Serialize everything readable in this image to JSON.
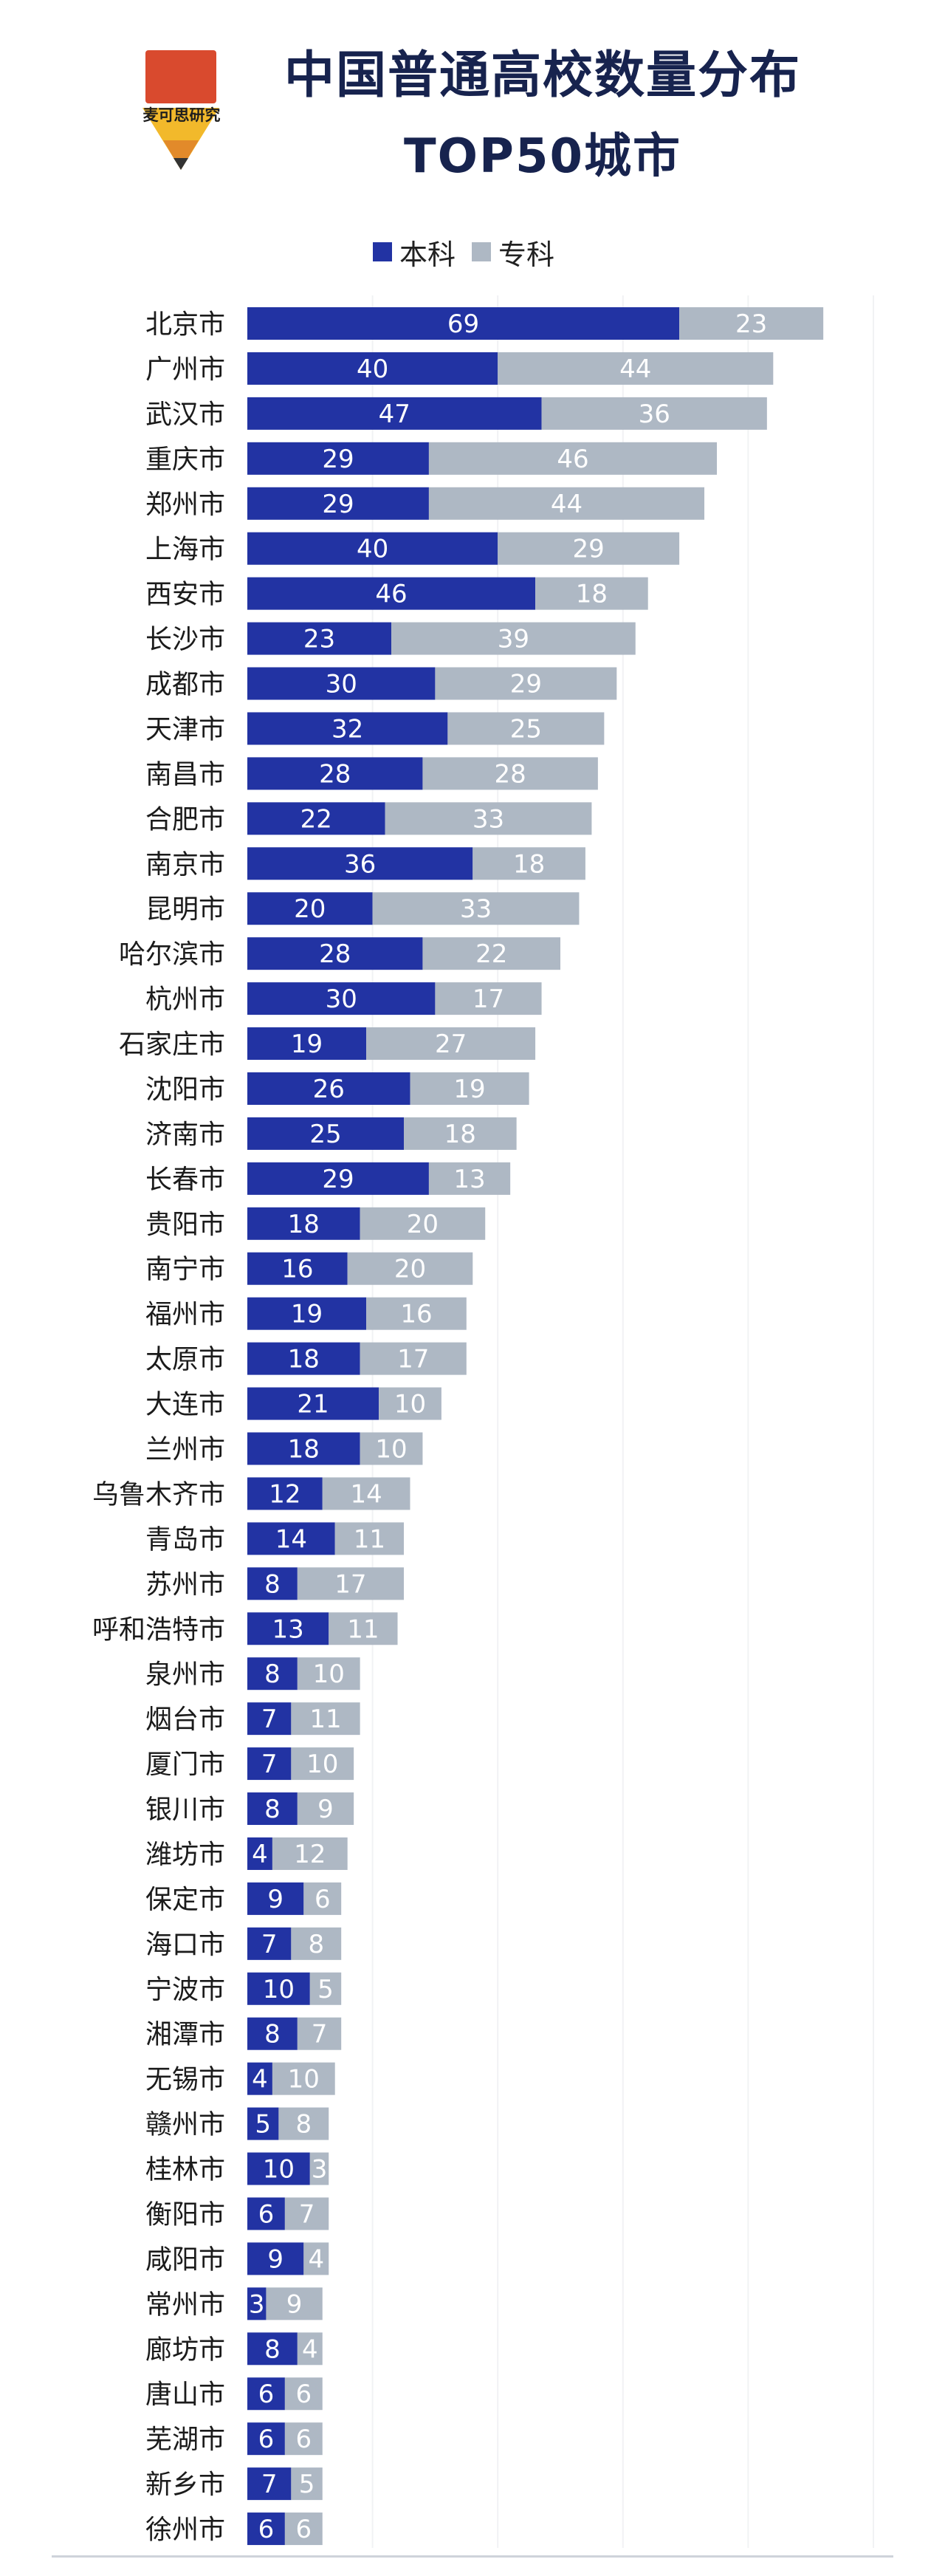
{
  "logo": {
    "text": "麦可思研究"
  },
  "title": {
    "line1": "中国普通高校数量分布",
    "line2": "TOP50城市"
  },
  "colors": {
    "undergrad": "#2233a3",
    "vocational": "#aeb8c4",
    "title": "#17234e",
    "logo_red": "#d94a2e",
    "logo_yellow": "#f2b92b"
  },
  "chart_data": {
    "type": "bar",
    "orientation": "horizontal",
    "stacked": true,
    "legend_position": "top",
    "categories": [
      "北京市",
      "广州市",
      "武汉市",
      "重庆市",
      "郑州市",
      "上海市",
      "西安市",
      "长沙市",
      "成都市",
      "天津市",
      "南昌市",
      "合肥市",
      "南京市",
      "昆明市",
      "哈尔滨市",
      "杭州市",
      "石家庄市",
      "沈阳市",
      "济南市",
      "长春市",
      "贵阳市",
      "南宁市",
      "福州市",
      "太原市",
      "大连市",
      "兰州市",
      "乌鲁木齐市",
      "青岛市",
      "苏州市",
      "呼和浩特市",
      "泉州市",
      "烟台市",
      "厦门市",
      "银川市",
      "潍坊市",
      "保定市",
      "海口市",
      "宁波市",
      "湘潭市",
      "无锡市",
      "赣州市",
      "桂林市",
      "衡阳市",
      "咸阳市",
      "常州市",
      "廊坊市",
      "唐山市",
      "芜湖市",
      "新乡市",
      "徐州市"
    ],
    "series": [
      {
        "name": "本科",
        "values": [
          69,
          40,
          47,
          29,
          29,
          40,
          46,
          23,
          30,
          32,
          28,
          22,
          36,
          20,
          28,
          30,
          19,
          26,
          25,
          29,
          18,
          16,
          19,
          18,
          21,
          18,
          12,
          14,
          8,
          13,
          8,
          7,
          7,
          8,
          4,
          9,
          7,
          10,
          8,
          4,
          5,
          10,
          6,
          9,
          3,
          8,
          6,
          6,
          7,
          6
        ]
      },
      {
        "name": "专科",
        "values": [
          23,
          44,
          36,
          46,
          44,
          29,
          18,
          39,
          29,
          25,
          28,
          33,
          18,
          33,
          22,
          17,
          27,
          19,
          18,
          13,
          20,
          20,
          16,
          17,
          10,
          10,
          14,
          11,
          17,
          11,
          10,
          11,
          10,
          9,
          12,
          6,
          8,
          5,
          7,
          10,
          8,
          3,
          7,
          4,
          9,
          4,
          6,
          6,
          5,
          6
        ]
      }
    ]
  }
}
